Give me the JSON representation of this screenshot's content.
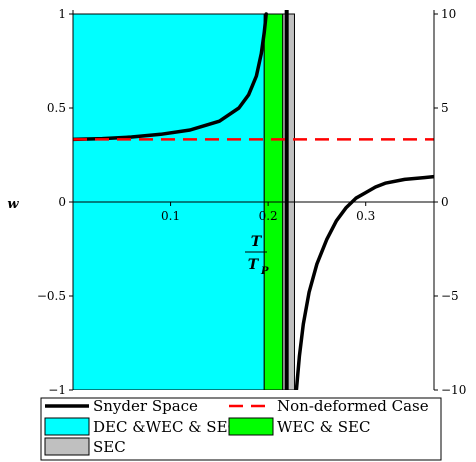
{
  "chart_data": {
    "type": "line",
    "title": "",
    "xlabel": {
      "numerator": "T",
      "denominator": "T",
      "subscript": "P"
    },
    "ylabel_left": "w",
    "xlim": [
      0.0,
      0.37
    ],
    "ylim_left": [
      -1,
      1
    ],
    "ylim_right": [
      -10,
      10
    ],
    "x_ticks": [
      "0.1",
      "0.2",
      "0.3"
    ],
    "x_tick_values": [
      0.1,
      0.2,
      0.3
    ],
    "y_left_ticks": [
      "1",
      "0.5",
      "0",
      "−0.5",
      "−1"
    ],
    "y_left_tick_values": [
      1,
      0.5,
      0,
      -0.5,
      -1
    ],
    "y_right_ticks": [
      "10",
      "5",
      "0",
      "−5",
      "−10"
    ],
    "y_right_tick_values": [
      10,
      5,
      0,
      -5,
      -10
    ],
    "regions": [
      {
        "name": "DEC &WEC & SEC",
        "x_range": [
          0.0,
          0.196
        ],
        "color": "#00ffff"
      },
      {
        "name": "WEC & SEC",
        "x_range": [
          0.196,
          0.215
        ],
        "color": "#00ff00"
      },
      {
        "name": "SEC",
        "x_range": [
          0.215,
          0.227
        ],
        "color": "#c0c0c0"
      }
    ],
    "vertical_line_x": 0.219,
    "series": [
      {
        "name": "Snyder Space",
        "axis": "left",
        "color": "#000000",
        "style": "solid",
        "segments": [
          {
            "x": [
              0.0,
              0.03,
              0.06,
              0.09,
              0.12,
              0.15,
              0.17,
              0.18,
              0.188,
              0.193,
              0.196,
              0.198
            ],
            "y": [
              0.333,
              0.337,
              0.346,
              0.36,
              0.383,
              0.43,
              0.5,
              0.57,
              0.67,
              0.79,
              0.9,
              1.0
            ]
          },
          {
            "x": [
              0.229,
              0.232,
              0.236,
              0.242,
              0.25,
              0.26,
              0.27,
              0.28,
              0.29,
              0.3,
              0.31,
              0.32,
              0.34,
              0.36,
              0.37
            ],
            "y": [
              -1.0,
              -0.82,
              -0.65,
              -0.48,
              -0.33,
              -0.2,
              -0.1,
              -0.03,
              0.02,
              0.05,
              0.08,
              0.1,
              0.12,
              0.13,
              0.135
            ]
          }
        ]
      },
      {
        "name": "Non-deformed Case",
        "axis": "left",
        "color": "#ff0000",
        "style": "dashed",
        "segments": [
          {
            "x": [
              0.0,
              0.37
            ],
            "y": [
              0.333,
              0.333
            ]
          }
        ]
      }
    ],
    "legend": {
      "placement": "bottom",
      "entries": [
        {
          "label": "Snyder Space",
          "kind": "line",
          "color": "#000000",
          "style": "solid"
        },
        {
          "label": "Non-deformed Case",
          "kind": "line",
          "color": "#ff0000",
          "style": "dashed"
        },
        {
          "label": "DEC &WEC & SEC",
          "kind": "box",
          "color": "#00ffff"
        },
        {
          "label": "WEC & SEC",
          "kind": "box",
          "color": "#00ff00"
        },
        {
          "label": "SEC",
          "kind": "box",
          "color": "#c0c0c0"
        }
      ]
    }
  }
}
